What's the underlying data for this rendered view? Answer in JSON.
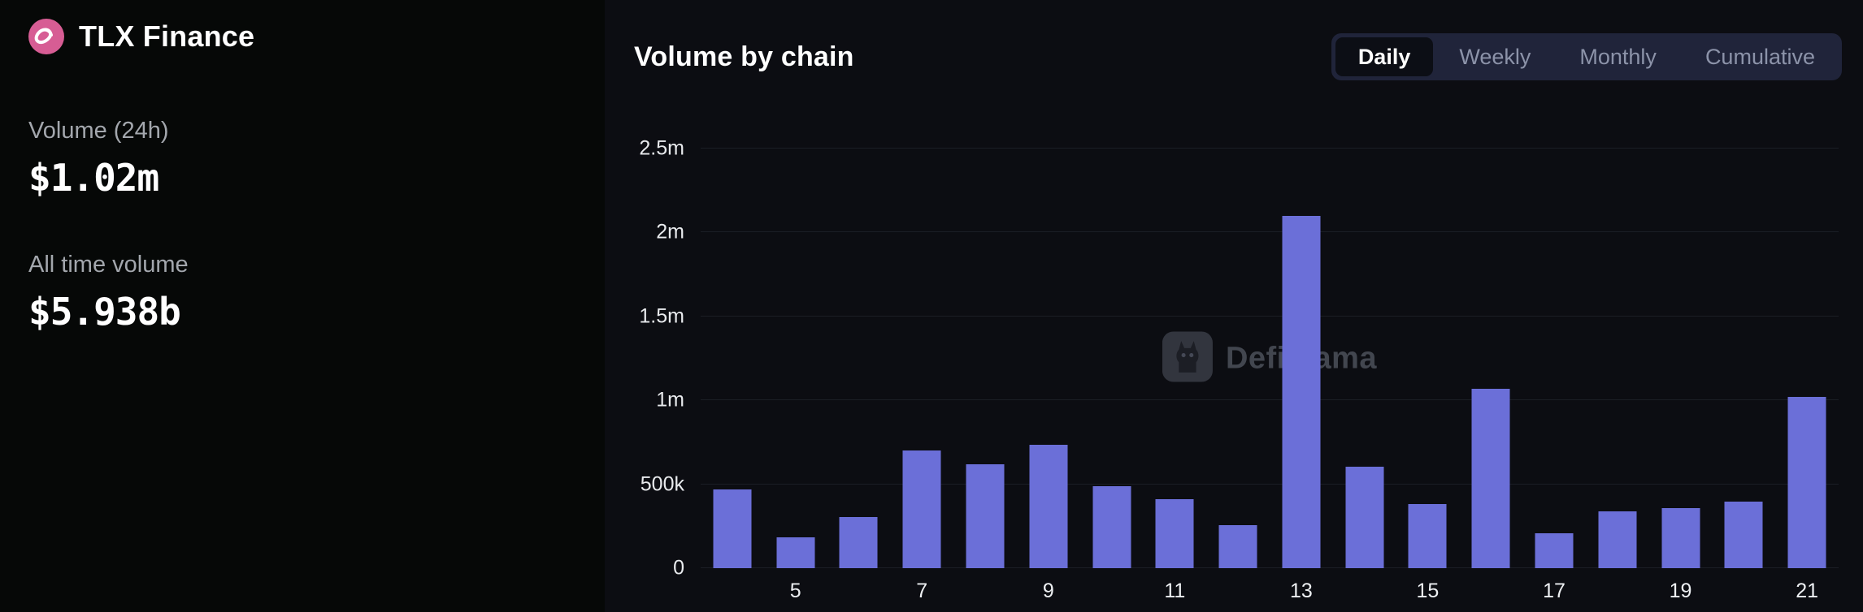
{
  "header": {
    "app_title": "TLX Finance",
    "logo_icon": "tlx-logo-icon"
  },
  "sidebar": {
    "volume_24h_label": "Volume (24h)",
    "volume_24h_value": "$1.02m",
    "all_time_label": "All time volume",
    "all_time_value": "$5.938b"
  },
  "chart_header": {
    "title": "Volume by chain",
    "range_options": [
      {
        "label": "Daily",
        "selected": true
      },
      {
        "label": "Weekly",
        "selected": false
      },
      {
        "label": "Monthly",
        "selected": false
      },
      {
        "label": "Cumulative",
        "selected": false
      }
    ]
  },
  "watermark": {
    "text": "DefiLlama",
    "icon": "defillama-llama-icon"
  },
  "colors": {
    "bar": "#6b6fd8",
    "logo_pink": "#d75d94",
    "range_group_bg": "#20243a",
    "selected_range_bg": "#0c0e15",
    "bg_left": "#060807",
    "bg_right": "#0c0d12",
    "gridline": "#1b1e25"
  },
  "chart_data": {
    "type": "bar",
    "title": "Volume by chain",
    "x": [
      4,
      5,
      6,
      7,
      8,
      9,
      10,
      11,
      12,
      13,
      14,
      15,
      16,
      17,
      18,
      19,
      20,
      21
    ],
    "values": [
      470000,
      185000,
      305000,
      700000,
      620000,
      735000,
      490000,
      410000,
      255000,
      2100000,
      605000,
      380000,
      1070000,
      210000,
      340000,
      360000,
      395000,
      1020000
    ],
    "ylim": [
      0,
      2500000
    ],
    "y_ticks": [
      {
        "value": 0,
        "label": "0"
      },
      {
        "value": 500000,
        "label": "500k"
      },
      {
        "value": 1000000,
        "label": "1m"
      },
      {
        "value": 1500000,
        "label": "1.5m"
      },
      {
        "value": 2000000,
        "label": "2m"
      },
      {
        "value": 2500000,
        "label": "2.5m"
      }
    ],
    "x_ticks": [
      5,
      7,
      9,
      11,
      13,
      15,
      17,
      19,
      21
    ],
    "grid": "horizontal",
    "legend": "none"
  }
}
